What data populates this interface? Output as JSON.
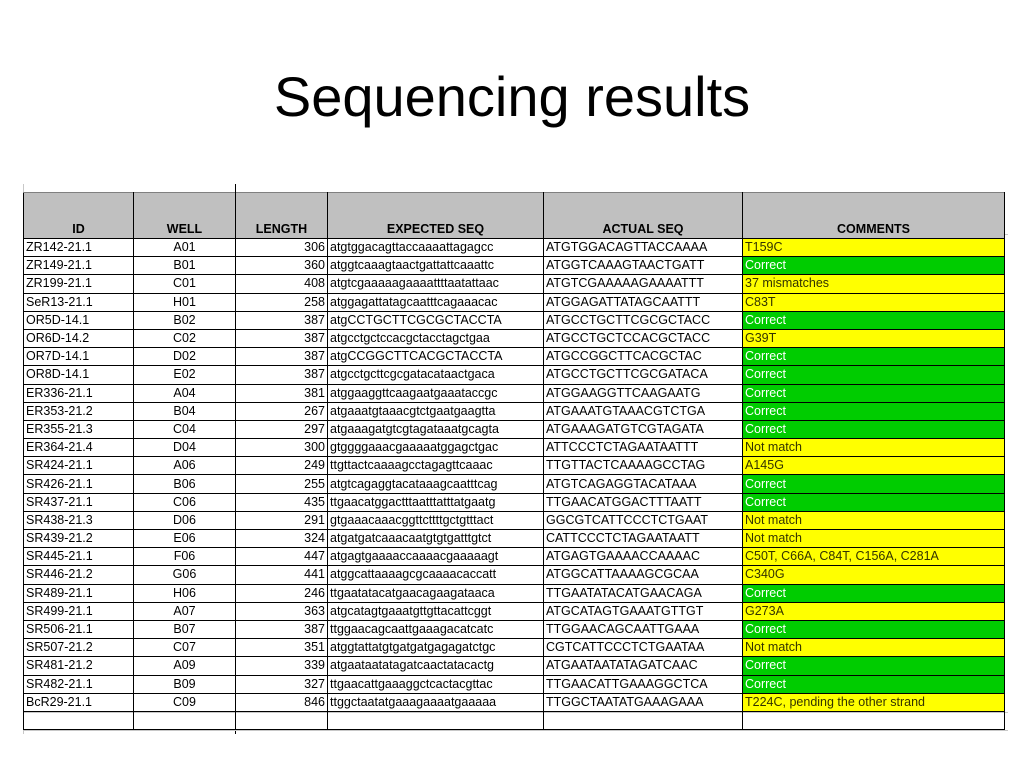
{
  "slide": {
    "title": "Sequencing results"
  },
  "table": {
    "headers": {
      "id": "ID",
      "well": "WELL",
      "length": "LENGTH",
      "expected": "EXPECTED SEQ",
      "actual": "ACTUAL SEQ",
      "comments": "COMMENTS"
    },
    "status_colors": {
      "correct": "#00cc00",
      "issue": "#ffff00"
    },
    "rows": [
      {
        "id": "ZR142-21.1",
        "well": "A01",
        "length": "306",
        "expected": "atgtggacagttaccaaaattagagcc",
        "actual": "ATGTGGACAGTTACCAAAA",
        "comment": "T159C",
        "status": "warn"
      },
      {
        "id": "ZR149-21.1",
        "well": "B01",
        "length": "360",
        "expected": "atggtcaaagtaactgattattcaaattc",
        "actual": "ATGGTCAAAGTAACTGATT",
        "comment": "Correct",
        "status": "ok"
      },
      {
        "id": "ZR199-21.1",
        "well": "C01",
        "length": "408",
        "expected": "atgtcgaaaaagaaaattttaatattaac",
        "actual": "ATGTCGAAAAAGAAAATTT",
        "comment": "37 mismatches",
        "status": "warn"
      },
      {
        "id": "SeR13-21.1",
        "well": "H01",
        "length": "258",
        "expected": "atggagattatagcaatttcagaaacac",
        "actual": "ATGGAGATTATAGCAATTT",
        "comment": "C83T",
        "status": "warn"
      },
      {
        "id": "OR5D-14.1",
        "well": "B02",
        "length": "387",
        "expected": "atgCCTGCTTCGCGCTACCTA",
        "actual": "ATGCCTGCTTCGCGCTACC",
        "comment": "Correct",
        "status": "ok"
      },
      {
        "id": "OR6D-14.2",
        "well": "C02",
        "length": "387",
        "expected": "atgcctgctccacgctacctagctgaa",
        "actual": "ATGCCTGCTCCACGCTACC",
        "comment": "G39T",
        "status": "warn"
      },
      {
        "id": "OR7D-14.1",
        "well": "D02",
        "length": "387",
        "expected": "atgCCGGCTTCACGCTACCTA",
        "actual": "ATGCCGGCTTCACGCTAC",
        "comment": "Correct",
        "status": "ok"
      },
      {
        "id": "OR8D-14.1",
        "well": "E02",
        "length": "387",
        "expected": "atgcctgcttcgcgatacataactgaca",
        "actual": "ATGCCTGCTTCGCGATACA",
        "comment": "Correct",
        "status": "ok"
      },
      {
        "id": "ER336-21.1",
        "well": "A04",
        "length": "381",
        "expected": "atggaaggttcaagaatgaaataccgc",
        "actual": "ATGGAAGGTTCAAGAATG",
        "comment": "Correct",
        "status": "ok"
      },
      {
        "id": "ER353-21.2",
        "well": "B04",
        "length": "267",
        "expected": "atgaaatgtaaacgtctgaatgaagtta",
        "actual": "ATGAAATGTAAACGTCTGA",
        "comment": "Correct",
        "status": "ok"
      },
      {
        "id": "ER355-21.3",
        "well": "C04",
        "length": "297",
        "expected": "atgaaagatgtcgtagataaatgcagta",
        "actual": "ATGAAAGATGTCGTAGATA",
        "comment": "Correct",
        "status": "ok"
      },
      {
        "id": "ER364-21.4",
        "well": "D04",
        "length": "300",
        "expected": "gtggggaaacgaaaaatggagctgac",
        "actual": "ATTCCCTCTAGAATAATTT",
        "comment": "Not match",
        "status": "warn"
      },
      {
        "id": "SR424-21.1",
        "well": "A06",
        "length": "249",
        "expected": "ttgttactcaaaagcctagagttcaaac",
        "actual": "TTGTTACTCAAAAGCCTAG",
        "comment": "A145G",
        "status": "warn"
      },
      {
        "id": "SR426-21.1",
        "well": "B06",
        "length": "255",
        "expected": "atgtcagaggtacataaagcaatttcag",
        "actual": "ATGTCAGAGGTACATAAA",
        "comment": "Correct",
        "status": "ok"
      },
      {
        "id": "SR437-21.1",
        "well": "C06",
        "length": "435",
        "expected": "ttgaacatggactttaatttatttatgaatg",
        "actual": "TTGAACATGGACTTTAATT",
        "comment": "Correct",
        "status": "ok"
      },
      {
        "id": "SR438-21.3",
        "well": "D06",
        "length": "291",
        "expected": "gtgaaacaaacggttcttttgctgtttact",
        "actual": "GGCGTCATTCCCTCTGAAT",
        "comment": "Not match",
        "status": "warn"
      },
      {
        "id": "SR439-21.2",
        "well": "E06",
        "length": "324",
        "expected": "atgatgatcaaacaatgtgtgatttgtct",
        "actual": "CATTCCCTCTAGAATAATT",
        "comment": "Not match",
        "status": "warn"
      },
      {
        "id": "SR445-21.1",
        "well": "F06",
        "length": "447",
        "expected": "atgagtgaaaaccaaaacgaaaaagt",
        "actual": "ATGAGTGAAAACCAAAAC",
        "comment": "C50T, C66A, C84T, C156A, C281A",
        "status": "warn"
      },
      {
        "id": "SR446-21.2",
        "well": "G06",
        "length": "441",
        "expected": "atggcattaaaagcgcaaaacaccatt",
        "actual": "ATGGCATTAAAAGCGCAA",
        "comment": "C340G",
        "status": "warn"
      },
      {
        "id": "SR489-21.1",
        "well": "H06",
        "length": "246",
        "expected": "ttgaatatacatgaacagaagataaca",
        "actual": "TTGAATATACATGAACAGA",
        "comment": "Correct",
        "status": "ok"
      },
      {
        "id": "SR499-21.1",
        "well": "A07",
        "length": "363",
        "expected": "atgcatagtgaaatgttgttacattcggt",
        "actual": "ATGCATAGTGAAATGTTGT",
        "comment": "G273A",
        "status": "warn"
      },
      {
        "id": "SR506-21.1",
        "well": "B07",
        "length": "387",
        "expected": "ttggaacagcaattgaaagacatcatc",
        "actual": "TTGGAACAGCAATTGAAA",
        "comment": "Correct",
        "status": "ok"
      },
      {
        "id": "SR507-21.2",
        "well": "C07",
        "length": "351",
        "expected": "atggtattatgtgatgatgagagatctgc",
        "actual": "CGTCATTCCCTCTGAATAA",
        "comment": "Not match",
        "status": "warn"
      },
      {
        "id": "SR481-21.2",
        "well": "A09",
        "length": "339",
        "expected": "atgaataatatagatcaactatacactg",
        "actual": "ATGAATAATATAGATCAAC",
        "comment": "Correct",
        "status": "ok"
      },
      {
        "id": "SR482-21.1",
        "well": "B09",
        "length": "327",
        "expected": "ttgaacattgaaaggctcactacgttac",
        "actual": "TTGAACATTGAAAGGCTCA",
        "comment": "Correct",
        "status": "ok"
      },
      {
        "id": "BcR29-21.1",
        "well": "C09",
        "length": "846",
        "expected": "ttggctaatatgaaagaaaatgaaaaa",
        "actual": "TTGGCTAATATGAAAGAAA",
        "comment": "T224C, pending the other strand",
        "status": "warn"
      }
    ]
  }
}
